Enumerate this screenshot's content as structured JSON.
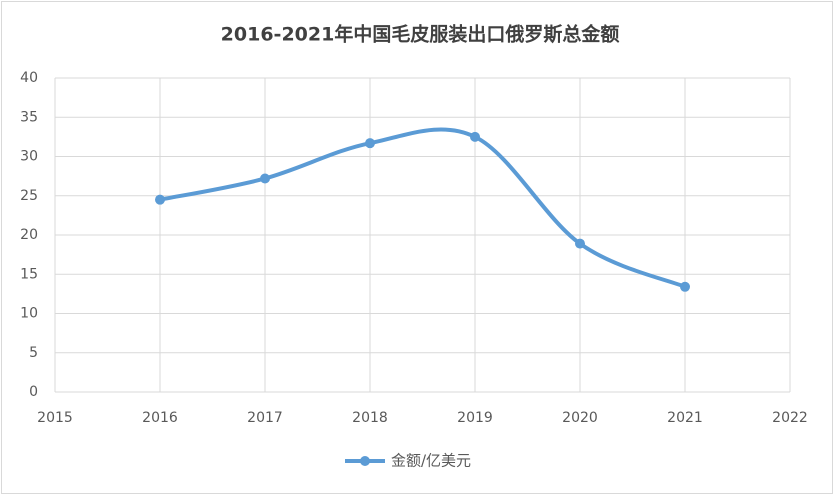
{
  "chart_data": {
    "type": "line",
    "title": "2016-2021年中国毛皮服装出口俄罗斯总金额",
    "x": [
      2016,
      2017,
      2018,
      2019,
      2020,
      2021
    ],
    "series": [
      {
        "name": "金额/亿美元",
        "color": "#5b9bd5",
        "values": [
          24.5,
          27.2,
          31.7,
          32.5,
          18.9,
          13.4
        ]
      }
    ],
    "xlim": [
      2015,
      2022
    ],
    "xticks": [
      2015,
      2016,
      2017,
      2018,
      2019,
      2020,
      2021,
      2022
    ],
    "ylim": [
      0,
      40
    ],
    "yticks": [
      0,
      5,
      10,
      15,
      20,
      25,
      30,
      35,
      40
    ],
    "grid": true,
    "smooth": true,
    "legend": "bottom"
  }
}
